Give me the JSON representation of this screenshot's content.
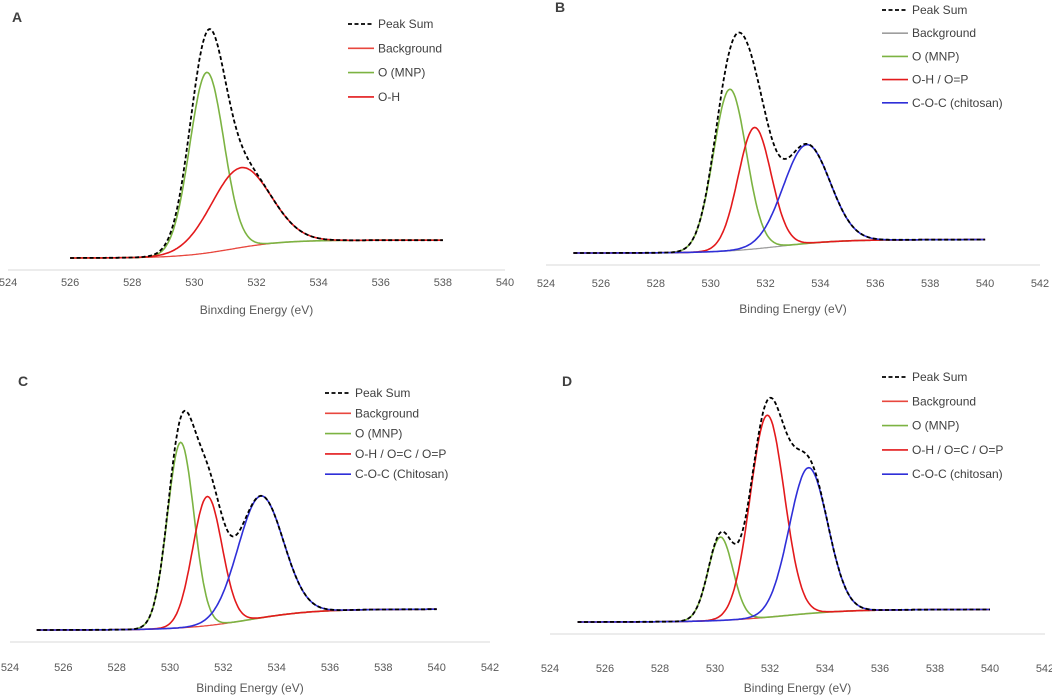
{
  "chart_data": [
    {
      "type": "line",
      "label": "A",
      "xlabel": "Binxding Energy (eV)",
      "xlim": [
        524,
        540
      ],
      "xticks": [
        524,
        526,
        528,
        530,
        532,
        534,
        536,
        538,
        540
      ],
      "ylim": [
        0,
        1.2
      ],
      "x_range": [
        526,
        538
      ],
      "background": {
        "start": 0.0,
        "end": 0.085,
        "center": 531.2,
        "width": 0.85
      },
      "series": [
        {
          "name": "Peak Sum",
          "color": "#000000",
          "dash": true,
          "kind": "sum"
        },
        {
          "name": "Background",
          "color": "#e8473e",
          "kind": "background"
        },
        {
          "name": "O (MNP)",
          "color": "#7cb342",
          "kind": "peak",
          "center": 530.4,
          "height": 0.86,
          "sigma": 0.55
        },
        {
          "name": "O-H",
          "color": "#e31a1c",
          "kind": "peak",
          "center": 531.5,
          "height": 0.38,
          "sigma": 0.95
        }
      ]
    },
    {
      "type": "line",
      "label": "B",
      "xlabel": "Binding Energy (eV)",
      "xlim": [
        524,
        542
      ],
      "xticks": [
        524,
        526,
        528,
        530,
        532,
        534,
        536,
        538,
        540,
        542
      ],
      "ylim": [
        0,
        1.2
      ],
      "x_range": [
        525,
        540
      ],
      "background": {
        "start": 0.0,
        "end": 0.065,
        "center": 532.5,
        "width": 1.1
      },
      "series": [
        {
          "name": "Peak Sum",
          "color": "#000000",
          "dash": true,
          "kind": "sum"
        },
        {
          "name": "Background",
          "color": "#9e9e9e",
          "kind": "background"
        },
        {
          "name": "O (MNP)",
          "color": "#7cb342",
          "kind": "peak",
          "center": 530.7,
          "height": 0.785,
          "sigma": 0.6
        },
        {
          "name": "O-H / O=P",
          "color": "#e31a1c",
          "kind": "peak",
          "center": 531.6,
          "height": 0.59,
          "sigma": 0.6
        },
        {
          "name": "C-O-C (chitosan)",
          "color": "#2f2fd8",
          "kind": "peak",
          "center": 533.5,
          "height": 0.48,
          "sigma": 0.85
        }
      ]
    },
    {
      "type": "line",
      "label": "C",
      "xlabel": "Binding Energy (eV)",
      "xlim": [
        524,
        542
      ],
      "xticks": [
        524,
        526,
        528,
        530,
        532,
        534,
        536,
        538,
        540,
        542
      ],
      "ylim": [
        0,
        1.2
      ],
      "x_range": [
        525,
        540
      ],
      "background": {
        "start": 0.0,
        "end": 0.1,
        "center": 533.0,
        "width": 1.2
      },
      "series": [
        {
          "name": "Peak Sum",
          "color": "#000000",
          "dash": true,
          "kind": "sum"
        },
        {
          "name": "Background",
          "color": "#e8473e",
          "kind": "background"
        },
        {
          "name": "O (MNP)",
          "color": "#7cb342",
          "kind": "peak",
          "center": 530.4,
          "height": 0.89,
          "sigma": 0.5
        },
        {
          "name": "O-H / O=C / O=P",
          "color": "#e31a1c",
          "kind": "peak",
          "center": 531.4,
          "height": 0.62,
          "sigma": 0.55
        },
        {
          "name": "C-O-C (Chitosan)",
          "color": "#2f2fd8",
          "kind": "peak",
          "center": 533.4,
          "height": 0.585,
          "sigma": 0.85
        }
      ]
    },
    {
      "type": "line",
      "label": "D",
      "xlabel": "Binding Energy (eV)",
      "xlim": [
        524,
        542
      ],
      "xticks": [
        524,
        526,
        528,
        530,
        532,
        534,
        536,
        538,
        540,
        542
      ],
      "ylim": [
        0,
        1.2
      ],
      "x_range": [
        525,
        540
      ],
      "background": {
        "start": 0.0,
        "end": 0.06,
        "center": 532.5,
        "width": 1.2
      },
      "series": [
        {
          "name": "Peak Sum",
          "color": "#000000",
          "dash": true,
          "kind": "sum"
        },
        {
          "name": "Background",
          "color": "#e8473e",
          "kind": "background"
        },
        {
          "name": "O (MNP)",
          "color": "#7cb342",
          "kind": "peak",
          "center": 530.2,
          "height": 0.4,
          "sigma": 0.45
        },
        {
          "name": "O-H / O=C / O=P",
          "color": "#e31a1c",
          "kind": "peak",
          "center": 531.9,
          "height": 0.97,
          "sigma": 0.62
        },
        {
          "name": "C-O-C (chitosan)",
          "color": "#2f2fd8",
          "kind": "peak",
          "center": 533.4,
          "height": 0.7,
          "sigma": 0.7
        }
      ]
    }
  ]
}
